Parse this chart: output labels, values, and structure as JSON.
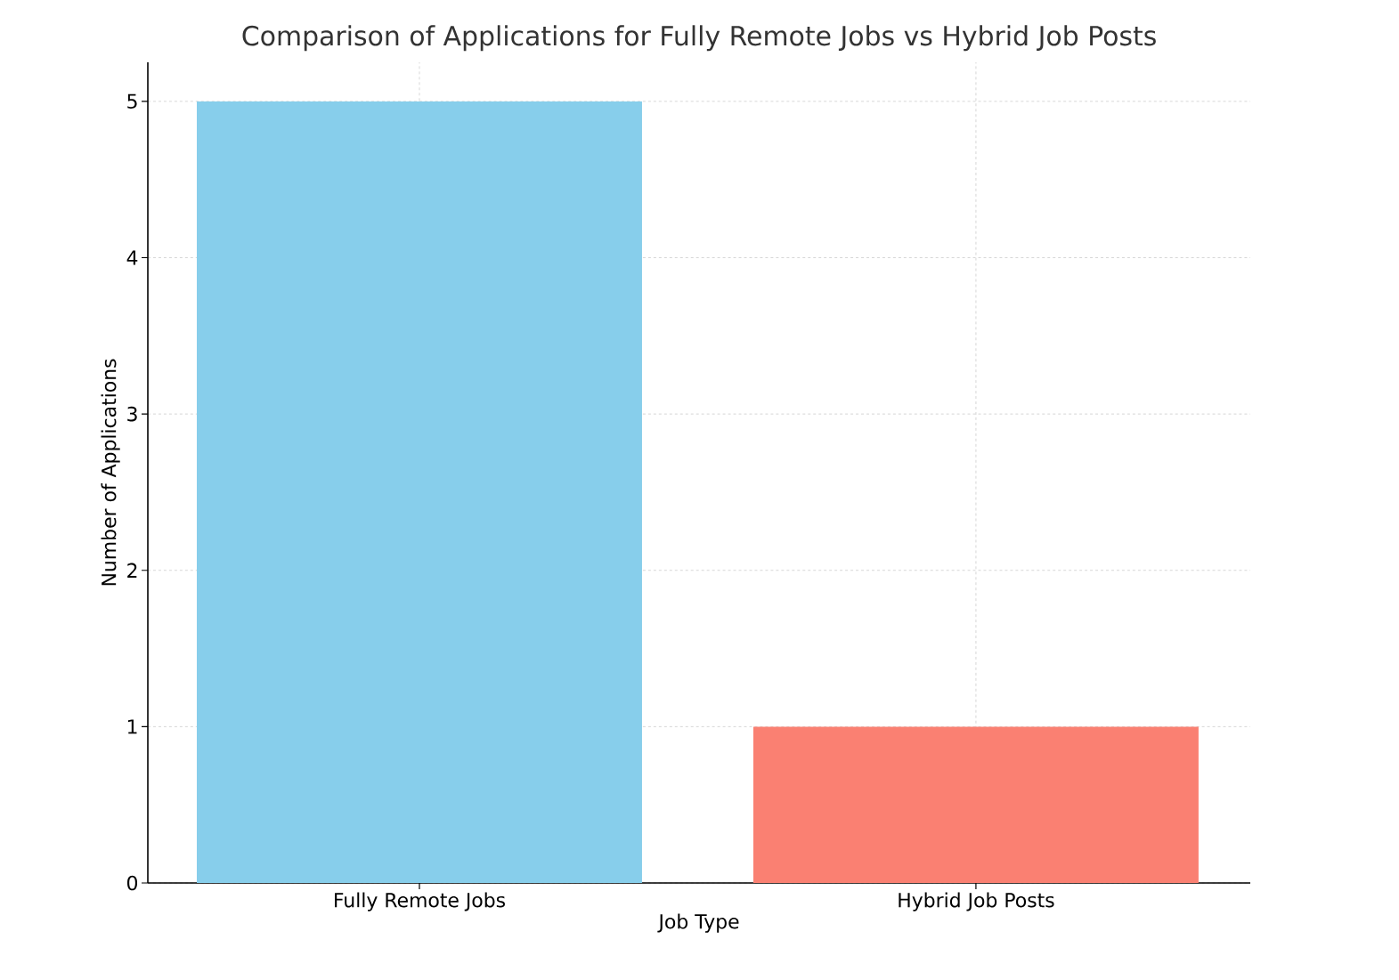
{
  "chart_data": {
    "type": "bar",
    "title": "Comparison of Applications for Fully Remote Jobs vs Hybrid Job Posts",
    "xlabel": "Job Type",
    "ylabel": "Number of Applications",
    "categories": [
      "Fully Remote Jobs",
      "Hybrid Job Posts"
    ],
    "values": [
      5,
      1
    ],
    "colors": [
      "#87ceeb",
      "#fa8072"
    ],
    "ylim": [
      0,
      5.25
    ],
    "yticks": [
      0,
      1,
      2,
      3,
      4,
      5
    ],
    "grid": true
  }
}
